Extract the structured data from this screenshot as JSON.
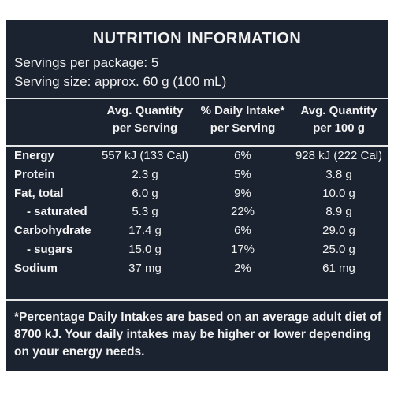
{
  "title": "NUTRITION INFORMATION",
  "servings_per_package": "Servings per package: 5",
  "serving_size": "Serving size: approx. 60 g (100 mL)",
  "columns": [
    {
      "line1": "Avg. Quantity",
      "line2": "per Serving"
    },
    {
      "line1": "% Daily Intake*",
      "line2": "per Serving"
    },
    {
      "line1": "Avg. Quantity",
      "line2": "per 100 g"
    }
  ],
  "rows": [
    {
      "label": "Energy",
      "per_serving": "557 kJ (133 Cal)",
      "daily_intake": "6%",
      "per_100g": "928 kJ (222 Cal)"
    },
    {
      "label": "Protein",
      "per_serving": "2.3 g",
      "daily_intake": "5%",
      "per_100g": "3.8 g"
    },
    {
      "label": "Fat, total",
      "per_serving": "6.0 g",
      "daily_intake": "9%",
      "per_100g": "10.0 g"
    },
    {
      "label": "- saturated",
      "per_serving": "5.3 g",
      "daily_intake": "22%",
      "per_100g": "8.9 g"
    },
    {
      "label": "Carbohydrate",
      "per_serving": "17.4 g",
      "daily_intake": "6%",
      "per_100g": "29.0 g"
    },
    {
      "label": "- sugars",
      "per_serving": "15.0 g",
      "daily_intake": "17%",
      "per_100g": "25.0 g"
    },
    {
      "label": "Sodium",
      "per_serving": "37 mg",
      "daily_intake": "2%",
      "per_100g": "61 mg"
    }
  ],
  "footnote": "*Percentage Daily Intakes are based on an average adult diet of 8700 kJ. Your daily intakes may be higher or lower depending on your energy needs.",
  "colors": {
    "panel_background": "#1c2330",
    "text": "#f2f2f2"
  }
}
